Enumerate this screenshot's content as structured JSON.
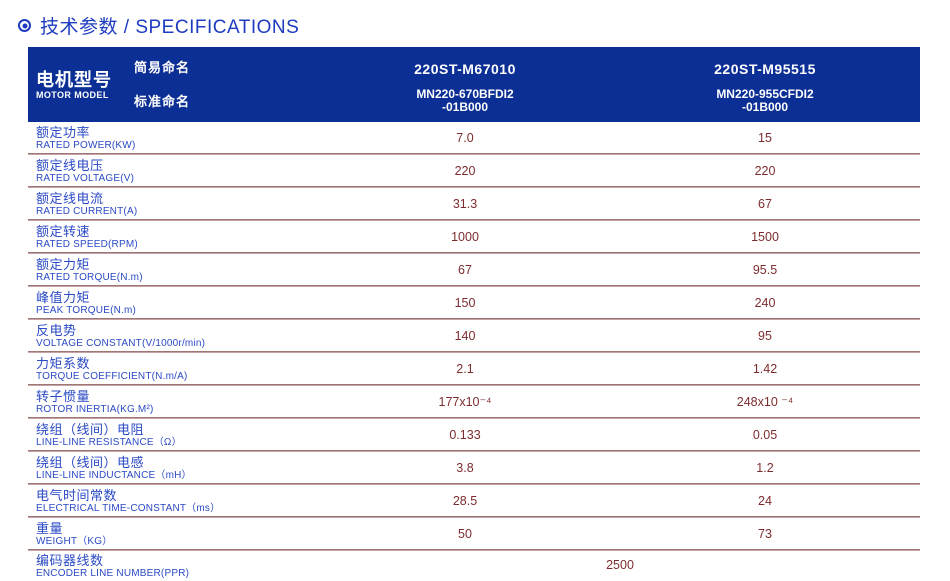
{
  "page_title": {
    "text": "技术参数 / SPECIFICATIONS",
    "icon": "circle-dot-icon"
  },
  "colors": {
    "header_navy": "#0c2f95",
    "title_blue": "#1d3cc0",
    "label_blue": "#2b4ac5",
    "value_maroon": "#7d2c2e",
    "separator": "#a98484"
  },
  "table": {
    "header": {
      "row_label_cn": "电机型号",
      "row_label_en": "MOTOR MODEL",
      "simple_name_label": "简易命名",
      "standard_name_label": "标准命名",
      "columns": [
        {
          "simple_name": "220ST-M67010",
          "standard_name_line1": "MN220-670BFDI2",
          "standard_name_line2": "-01B000"
        },
        {
          "simple_name": "220ST-M95515",
          "standard_name_line1": "MN220-955CFDI2",
          "standard_name_line2": "-01B000"
        }
      ]
    },
    "rows": [
      {
        "cn": "额定功率",
        "en": "RATED POWER(KW)",
        "v1": "7.0",
        "v2": "15"
      },
      {
        "cn": "额定线电压",
        "en": "RATED VOLTAGE(V)",
        "v1": "220",
        "v2": "220"
      },
      {
        "cn": "额定线电流",
        "en": "RATED CURRENT(A)",
        "v1": "31.3",
        "v2": "67"
      },
      {
        "cn": "额定转速",
        "en": "RATED SPEED(RPM)",
        "v1": "1000",
        "v2": "1500"
      },
      {
        "cn": "额定力矩",
        "en": "RATED TORQUE(N.m)",
        "v1": "67",
        "v2": "95.5"
      },
      {
        "cn": "峰值力矩",
        "en": "PEAK TORQUE(N.m)",
        "v1": "150",
        "v2": "240"
      },
      {
        "cn": "反电势",
        "en": "VOLTAGE CONSTANT(V/1000r/min)",
        "v1": "140",
        "v2": "95"
      },
      {
        "cn": "力矩系数",
        "en": "TORQUE COEFFICIENT(N.m/A)",
        "v1": "2.1",
        "v2": "1.42"
      },
      {
        "cn": "转子惯量",
        "en": "ROTOR INERTIA(KG.M²)",
        "v1": "177x10⁻⁴",
        "v2": "248x10 ⁻⁴"
      },
      {
        "cn": "绕组（线间）电阻",
        "en": "LINE-LINE RESISTANCE（Ω）",
        "v1": "0.133",
        "v2": "0.05"
      },
      {
        "cn": "绕组（线间）电感",
        "en": "LINE-LINE INDUCTANCE（mH）",
        "v1": "3.8",
        "v2": "1.2"
      },
      {
        "cn": "电气时间常数",
        "en": "ELECTRICAL TIME-CONSTANT（ms）",
        "v1": "28.5",
        "v2": "24"
      },
      {
        "cn": "重量",
        "en": "WEIGHT（KG）",
        "v1": "50",
        "v2": "73"
      },
      {
        "cn": "编码器线数",
        "en": "ENCODER LINE NUMBER(PPR)",
        "span": "2500"
      }
    ]
  }
}
